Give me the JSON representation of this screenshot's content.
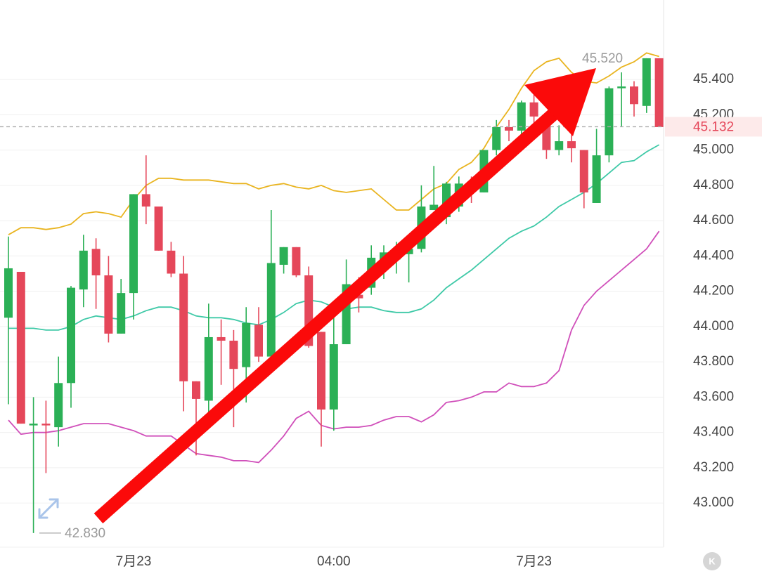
{
  "chart_data": {
    "type": "candlestick",
    "categories": [
      null,
      null,
      null,
      null,
      null,
      null,
      null,
      null,
      null,
      null,
      "7月23",
      null,
      null,
      null,
      null,
      null,
      null,
      null,
      null,
      null,
      null,
      null,
      null,
      null,
      null,
      null,
      "04:00",
      null,
      null,
      null,
      null,
      null,
      null,
      null,
      null,
      null,
      null,
      null,
      null,
      null,
      null,
      null,
      "7月23",
      null,
      null,
      null,
      null,
      null,
      null,
      null,
      null,
      null,
      null
    ],
    "open": [
      44.05,
      44.31,
      43.44,
      43.45,
      43.43,
      43.68,
      44.21,
      44.44,
      44.29,
      43.96,
      44.19,
      44.75,
      44.68,
      44.43,
      44.3,
      43.69,
      43.58,
      43.94,
      43.92,
      43.77,
      44.01,
      43.83,
      44.35,
      44.45,
      44.29,
      43.97,
      43.53,
      43.9,
      44.18,
      44.22,
      44.32,
      44.38,
      44.41,
      44.44,
      44.66,
      44.62,
      44.68,
      44.82,
      44.76,
      45.0,
      45.13,
      45.11,
      45.27,
      45.14,
      45.0,
      45.05,
      45.0,
      44.7,
      44.97,
      45.35,
      45.36,
      45.25,
      45.52
    ],
    "high": [
      44.51,
      44.31,
      43.6,
      43.58,
      43.83,
      44.23,
      44.52,
      44.5,
      44.4,
      44.27,
      44.75,
      44.97,
      44.68,
      44.48,
      44.4,
      43.69,
      44.13,
      44.04,
      43.98,
      44.11,
      44.11,
      44.66,
      44.45,
      44.45,
      44.34,
      43.97,
      44.14,
      44.38,
      44.28,
      44.46,
      44.46,
      44.48,
      44.5,
      44.8,
      44.91,
      44.82,
      44.85,
      44.85,
      45.0,
      45.17,
      45.17,
      45.28,
      45.33,
      45.17,
      45.14,
      45.09,
      45.0,
      45.12,
      45.36,
      45.44,
      45.39,
      45.52,
      45.52
    ],
    "low": [
      43.56,
      43.45,
      42.83,
      43.17,
      43.32,
      43.54,
      44.11,
      44.1,
      43.91,
      43.96,
      44.04,
      44.58,
      44.43,
      44.28,
      43.52,
      43.27,
      43.42,
      43.67,
      43.43,
      43.57,
      43.8,
      43.78,
      44.3,
      44.28,
      43.88,
      43.32,
      43.41,
      43.9,
      44.08,
      44.18,
      44.27,
      44.3,
      44.25,
      44.42,
      44.66,
      44.58,
      44.65,
      44.7,
      44.76,
      44.97,
      45.05,
      45.09,
      45.07,
      44.95,
      44.97,
      44.93,
      44.67,
      44.7,
      44.93,
      45.13,
      45.19,
      45.21,
      45.13
    ],
    "close": [
      44.33,
      43.45,
      43.45,
      43.44,
      43.68,
      44.22,
      44.43,
      44.29,
      43.96,
      44.19,
      44.75,
      44.68,
      44.43,
      44.3,
      43.69,
      43.59,
      43.94,
      43.92,
      43.76,
      44.02,
      43.83,
      44.36,
      44.45,
      44.29,
      43.89,
      43.53,
      43.9,
      44.24,
      44.16,
      44.39,
      44.42,
      44.42,
      44.44,
      44.68,
      44.69,
      44.81,
      44.81,
      44.77,
      45.0,
      45.13,
      45.11,
      45.27,
      45.19,
      45.0,
      45.05,
      45.01,
      44.76,
      44.97,
      45.35,
      45.36,
      45.26,
      45.52,
      45.13
    ],
    "up_color": "#2bb056",
    "down_color": "#e5475a",
    "lines": [
      {
        "color": "#e9b41f",
        "values": [
          44.52,
          44.56,
          44.56,
          44.55,
          44.56,
          44.58,
          44.64,
          44.65,
          44.64,
          44.62,
          44.72,
          44.8,
          44.84,
          44.84,
          44.83,
          44.83,
          44.83,
          44.82,
          44.81,
          44.81,
          44.78,
          44.8,
          44.81,
          44.79,
          44.78,
          44.8,
          44.77,
          44.76,
          44.77,
          44.78,
          44.72,
          44.66,
          44.66,
          44.72,
          44.78,
          44.81,
          44.89,
          44.93,
          45.01,
          45.13,
          45.23,
          45.35,
          45.45,
          45.5,
          45.52,
          45.44,
          45.39,
          45.38,
          45.42,
          45.47,
          45.5,
          45.55,
          45.53
        ]
      },
      {
        "color": "#3ec9a7",
        "values": [
          43.99,
          43.99,
          43.99,
          43.98,
          43.98,
          44.0,
          44.04,
          44.06,
          44.05,
          44.04,
          44.06,
          44.09,
          44.11,
          44.11,
          44.09,
          44.06,
          44.05,
          44.05,
          44.04,
          44.02,
          44.01,
          44.04,
          44.08,
          44.13,
          44.15,
          44.14,
          44.11,
          44.1,
          44.11,
          44.11,
          44.09,
          44.08,
          44.08,
          44.1,
          44.15,
          44.22,
          44.27,
          44.32,
          44.38,
          44.44,
          44.5,
          44.54,
          44.57,
          44.62,
          44.68,
          44.72,
          44.76,
          44.81,
          44.87,
          44.93,
          44.94,
          44.99,
          45.03
        ]
      },
      {
        "color": "#d04fba",
        "values": [
          43.47,
          43.39,
          43.4,
          43.4,
          43.41,
          43.43,
          43.45,
          43.45,
          43.45,
          43.43,
          43.41,
          43.38,
          43.38,
          43.38,
          43.33,
          43.28,
          43.27,
          43.26,
          43.24,
          43.24,
          43.23,
          43.3,
          43.38,
          43.48,
          43.52,
          43.44,
          43.42,
          43.43,
          43.43,
          43.44,
          43.47,
          43.49,
          43.49,
          43.46,
          43.5,
          43.57,
          43.58,
          43.6,
          43.63,
          43.63,
          43.68,
          43.66,
          43.66,
          43.68,
          43.75,
          43.98,
          44.12,
          44.2,
          44.26,
          44.32,
          44.38,
          44.44,
          44.54
        ]
      }
    ],
    "ylim": [
      42.75,
      45.85
    ],
    "yticks": [
      {
        "value": 43,
        "label": "43.000"
      },
      {
        "value": 43.2,
        "label": "43.200"
      },
      {
        "value": 43.4,
        "label": "43.400"
      },
      {
        "value": 43.6,
        "label": "43.600"
      },
      {
        "value": 43.8,
        "label": "43.800"
      },
      {
        "value": 44,
        "label": "44.000"
      },
      {
        "value": 44.2,
        "label": "44.200"
      },
      {
        "value": 44.4,
        "label": "44.400"
      },
      {
        "value": 44.6,
        "label": "44.600"
      },
      {
        "value": 44.8,
        "label": "44.800"
      },
      {
        "value": 45,
        "label": "45.000"
      },
      {
        "value": 45.2,
        "label": "45.200"
      },
      {
        "value": 45.4,
        "label": "45.400"
      }
    ],
    "grid": true,
    "high_label": {
      "value": 45.52,
      "label": "45.520"
    },
    "low_label": {
      "value": 42.83,
      "label": "42.830"
    },
    "last_price": {
      "value": 45.132,
      "label": "45.132"
    }
  }
}
